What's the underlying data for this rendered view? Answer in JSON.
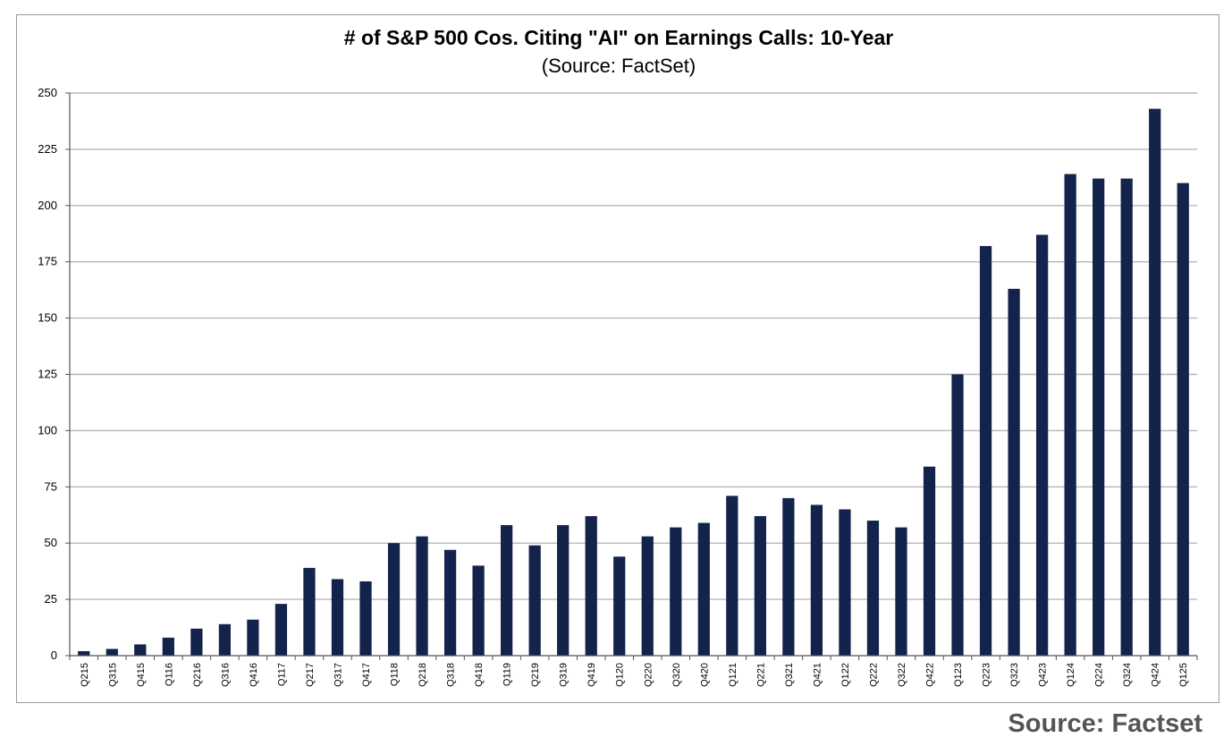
{
  "footer": {
    "source": "Source: Factset"
  },
  "colors": {
    "bar": "#13234b",
    "grid": "#b7b7b7",
    "axis": "#555555"
  },
  "chart_data": {
    "type": "bar",
    "title": "# of S&P 500 Cos. Citing \"AI\" on Earnings Calls: 10-Year",
    "subtitle": "(Source: FactSet)",
    "xlabel": "",
    "ylabel": "",
    "ylim": [
      0,
      250
    ],
    "yticks": [
      0,
      25,
      50,
      75,
      100,
      125,
      150,
      175,
      200,
      225,
      250
    ],
    "grid": true,
    "legend": "none",
    "categories": [
      "Q215",
      "Q315",
      "Q415",
      "Q116",
      "Q216",
      "Q316",
      "Q416",
      "Q117",
      "Q217",
      "Q317",
      "Q417",
      "Q118",
      "Q218",
      "Q318",
      "Q418",
      "Q119",
      "Q219",
      "Q319",
      "Q419",
      "Q120",
      "Q220",
      "Q320",
      "Q420",
      "Q121",
      "Q221",
      "Q321",
      "Q421",
      "Q122",
      "Q222",
      "Q322",
      "Q422",
      "Q123",
      "Q223",
      "Q323",
      "Q423",
      "Q124",
      "Q224",
      "Q324",
      "Q424",
      "Q125"
    ],
    "values": [
      2,
      3,
      5,
      8,
      12,
      14,
      16,
      23,
      39,
      34,
      33,
      50,
      53,
      47,
      40,
      58,
      49,
      58,
      62,
      44,
      53,
      57,
      59,
      71,
      62,
      70,
      67,
      65,
      60,
      57,
      84,
      125,
      182,
      163,
      187,
      214,
      212,
      212,
      243,
      210
    ]
  }
}
